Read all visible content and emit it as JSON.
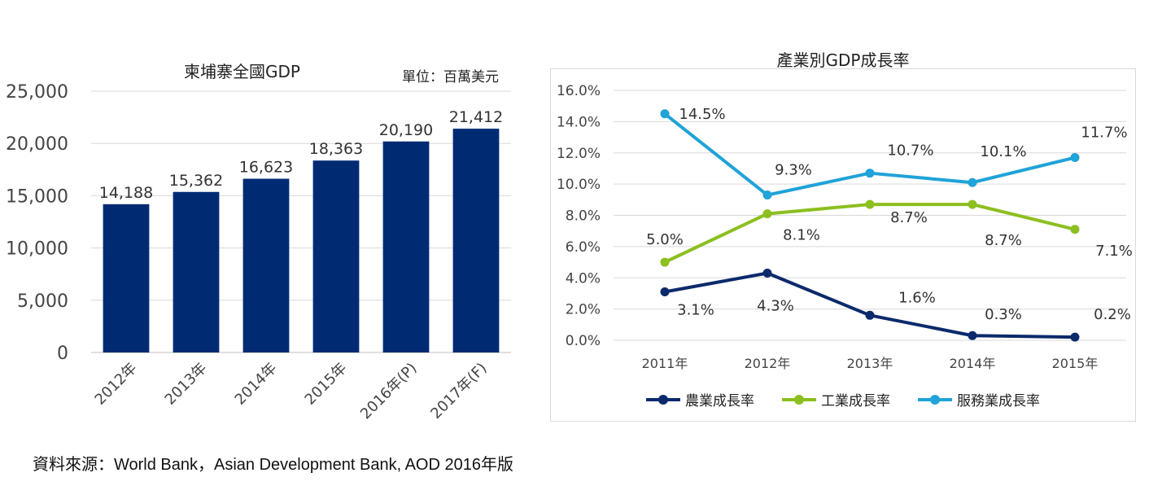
{
  "chart_data": [
    {
      "type": "bar",
      "title": "柬埔寨全國GDP",
      "unit": "單位：百萬美元",
      "categories": [
        "2012年",
        "2013年",
        "2014年",
        "2015年",
        "2016年(P)",
        "2017年(F)"
      ],
      "values": [
        14188,
        15362,
        16623,
        18363,
        20190,
        21412
      ],
      "value_labels": [
        "14,188",
        "15,362",
        "16,623",
        "18,363",
        "20,190",
        "21,412"
      ],
      "ylim": [
        0,
        25000
      ],
      "yticks": [
        "0",
        "5,000",
        "10,000",
        "15,000",
        "20,000",
        "25,000"
      ],
      "grid": true,
      "bar_color": "#002b73"
    },
    {
      "type": "line",
      "title": "產業別GDP成長率",
      "categories": [
        "2011年",
        "2012年",
        "2013年",
        "2014年",
        "2015年"
      ],
      "ylim": [
        0,
        16
      ],
      "yticks": [
        "0.0%",
        "2.0%",
        "4.0%",
        "6.0%",
        "8.0%",
        "10.0%",
        "12.0%",
        "14.0%",
        "16.0%"
      ],
      "grid": true,
      "legend_position": "bottom",
      "series": [
        {
          "name": "農業成長率",
          "color": "#0b2a6b",
          "values": [
            3.1,
            4.3,
            1.6,
            0.3,
            0.2
          ],
          "labels": [
            "3.1%",
            "4.3%",
            "1.6%",
            "0.3%",
            "0.2%"
          ]
        },
        {
          "name": "工業成長率",
          "color": "#8cbf1f",
          "values": [
            5.0,
            8.1,
            8.7,
            8.7,
            7.1
          ],
          "labels": [
            "5.0%",
            "8.1%",
            "8.7%",
            "8.7%",
            "7.1%"
          ]
        },
        {
          "name": "服務業成長率",
          "color": "#1fa3d8",
          "values": [
            14.5,
            9.3,
            10.7,
            10.1,
            11.7
          ],
          "labels": [
            "14.5%",
            "9.3%",
            "10.7%",
            "10.1%",
            "11.7%"
          ]
        }
      ]
    }
  ],
  "source": "資料來源：World Bank，Asian Development Bank, AOD 2016年版"
}
